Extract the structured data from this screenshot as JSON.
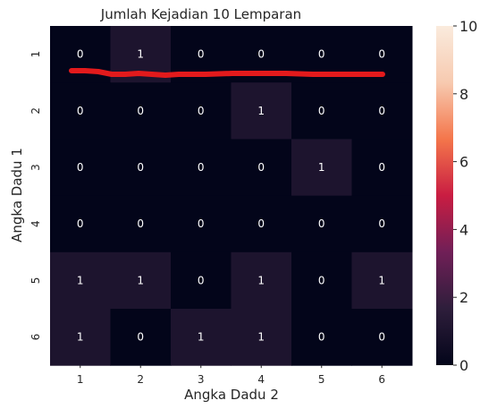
{
  "chart_data": {
    "type": "heatmap",
    "title": "Jumlah Kejadian 10 Lemparan",
    "xlabel": "Angka Dadu 2",
    "ylabel": "Angka Dadu 1",
    "x_categories": [
      "1",
      "2",
      "3",
      "4",
      "5",
      "6"
    ],
    "y_categories": [
      "1",
      "2",
      "3",
      "4",
      "5",
      "6"
    ],
    "values": [
      [
        0,
        1,
        0,
        0,
        0,
        0
      ],
      [
        0,
        0,
        0,
        1,
        0,
        0
      ],
      [
        0,
        0,
        0,
        0,
        1,
        0
      ],
      [
        0,
        0,
        0,
        0,
        0,
        0
      ],
      [
        1,
        1,
        0,
        1,
        0,
        1
      ],
      [
        1,
        0,
        1,
        1,
        0,
        0
      ]
    ],
    "colorbar": {
      "min": 0,
      "max": 10,
      "ticks": [
        "0",
        "2",
        "4",
        "6",
        "8",
        "10"
      ]
    },
    "colormap_stops": [
      "#03051a",
      "#2e1e3b",
      "#701f57",
      "#c91d42",
      "#f4764b",
      "#f7cab0",
      "#faebdd"
    ],
    "annotation_color": "#e31a1c"
  }
}
